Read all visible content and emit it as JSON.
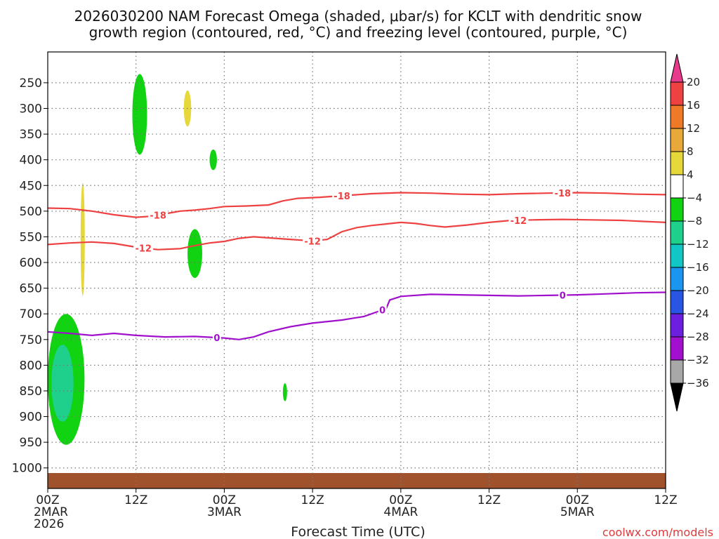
{
  "title_lines": [
    "2026030200 NAM Forecast Omega (shaded, μbar/s) for KCLT with dendritic snow",
    "growth region (contoured, red, °C) and freezing level (contoured, purple, °C)"
  ],
  "credit": "coolwx.com/models",
  "chart_data": {
    "type": "heatmap",
    "title": "2026030200 NAM Forecast Omega (shaded, μbar/s) for KCLT with dendritic snow growth region (contoured, red, °C) and freezing level (contoured, purple, °C)",
    "xlabel": "Forecast Time (UTC)",
    "ylabel": "",
    "xlim": [
      0,
      84
    ],
    "ylim": [
      1040,
      190
    ],
    "y_ticks": [
      250,
      300,
      350,
      400,
      450,
      500,
      550,
      600,
      650,
      700,
      750,
      800,
      850,
      900,
      950,
      1000
    ],
    "x_ticks": [
      {
        "hour": 0,
        "lines": [
          "00Z",
          "2MAR",
          "2026"
        ]
      },
      {
        "hour": 12,
        "lines": [
          "12Z"
        ]
      },
      {
        "hour": 24,
        "lines": [
          "00Z",
          "3MAR"
        ]
      },
      {
        "hour": 36,
        "lines": [
          "12Z"
        ]
      },
      {
        "hour": 48,
        "lines": [
          "00Z",
          "4MAR"
        ]
      },
      {
        "hour": 60,
        "lines": [
          "12Z"
        ]
      },
      {
        "hour": 72,
        "lines": [
          "00Z",
          "5MAR"
        ]
      },
      {
        "hour": 84,
        "lines": [
          "12Z"
        ]
      }
    ],
    "grid": true,
    "colorbar": {
      "levels": [
        "20",
        "16",
        "12",
        "8",
        "4",
        "−4",
        "−8",
        "−12",
        "−16",
        "−20",
        "−24",
        "−28",
        "−32",
        "−36"
      ],
      "colors": [
        "#e83a8c",
        "#ee4141",
        "#ee7a28",
        "#e8a93a",
        "#e6d83a",
        "#ffffff",
        "#11d311",
        "#1ed08c",
        "#13c6c6",
        "#1a96f0",
        "#2955e5",
        "#6d1fe0",
        "#a30fcf",
        "#a8a8a8",
        "#000000"
      ]
    },
    "contours": [
      {
        "label": "-18",
        "color": "#ee4141",
        "points": [
          [
            0,
            494
          ],
          [
            3,
            495
          ],
          [
            6,
            500
          ],
          [
            9,
            507
          ],
          [
            12,
            512
          ],
          [
            14,
            510
          ],
          [
            16,
            505
          ],
          [
            18,
            500
          ],
          [
            20,
            498
          ],
          [
            22,
            495
          ],
          [
            24,
            491
          ],
          [
            27,
            490
          ],
          [
            30,
            488
          ],
          [
            32,
            480
          ],
          [
            34,
            475
          ],
          [
            37,
            473
          ],
          [
            40,
            470
          ],
          [
            44,
            466
          ],
          [
            48,
            464
          ],
          [
            52,
            465
          ],
          [
            56,
            467
          ],
          [
            60,
            468
          ],
          [
            64,
            466
          ],
          [
            68,
            465
          ],
          [
            72,
            464
          ],
          [
            76,
            465
          ],
          [
            80,
            467
          ],
          [
            84,
            468
          ]
        ]
      },
      {
        "label": "-12",
        "color": "#ee4141",
        "points": [
          [
            0,
            565
          ],
          [
            3,
            562
          ],
          [
            6,
            560
          ],
          [
            9,
            563
          ],
          [
            12,
            570
          ],
          [
            15,
            575
          ],
          [
            18,
            573
          ],
          [
            20,
            567
          ],
          [
            22,
            562
          ],
          [
            24,
            559
          ],
          [
            26,
            553
          ],
          [
            28,
            550
          ],
          [
            30,
            552
          ],
          [
            33,
            555
          ],
          [
            36,
            558
          ],
          [
            38,
            555
          ],
          [
            40,
            540
          ],
          [
            42,
            532
          ],
          [
            44,
            528
          ],
          [
            46,
            525
          ],
          [
            48,
            522
          ],
          [
            50,
            524
          ],
          [
            52,
            528
          ],
          [
            54,
            531
          ],
          [
            57,
            527
          ],
          [
            60,
            522
          ],
          [
            63,
            518
          ],
          [
            66,
            517
          ],
          [
            70,
            516
          ],
          [
            74,
            517
          ],
          [
            78,
            518
          ],
          [
            81,
            520
          ],
          [
            84,
            522
          ]
        ]
      },
      {
        "label": "0",
        "color": "#a010cc",
        "points": [
          [
            0,
            735
          ],
          [
            3,
            738
          ],
          [
            6,
            742
          ],
          [
            9,
            738
          ],
          [
            12,
            742
          ],
          [
            16,
            745
          ],
          [
            20,
            744
          ],
          [
            24,
            747
          ],
          [
            26,
            750
          ],
          [
            28,
            745
          ],
          [
            30,
            735
          ],
          [
            33,
            725
          ],
          [
            36,
            718
          ],
          [
            40,
            712
          ],
          [
            43,
            705
          ],
          [
            45,
            695
          ],
          [
            46,
            690
          ],
          [
            46.5,
            673
          ],
          [
            48,
            666
          ],
          [
            52,
            662
          ],
          [
            56,
            663
          ],
          [
            60,
            664
          ],
          [
            64,
            665
          ],
          [
            68,
            664
          ],
          [
            72,
            663
          ],
          [
            76,
            661
          ],
          [
            80,
            659
          ],
          [
            84,
            658
          ]
        ]
      }
    ],
    "shaded_regions": [
      {
        "value": "−4 to −8",
        "color": "#11d311",
        "x": [
          0,
          5
        ],
        "y": [
          700,
          955
        ]
      },
      {
        "value": "−8 to −12",
        "color": "#1ed08c",
        "x": [
          0.5,
          3.5
        ],
        "y": [
          760,
          910
        ]
      },
      {
        "value": "−4 to −8",
        "color": "#11d311",
        "x": [
          11.5,
          13.5
        ],
        "y": [
          233,
          390
        ]
      },
      {
        "value": "4 to 8",
        "color": "#e6d83a",
        "x": [
          18.5,
          19.5
        ],
        "y": [
          265,
          335
        ]
      },
      {
        "value": "4 to 8",
        "color": "#e6d83a",
        "x": [
          4.5,
          5
        ],
        "y": [
          445,
          665
        ]
      },
      {
        "value": "−4 to −8",
        "color": "#11d311",
        "x": [
          22,
          23
        ],
        "y": [
          380,
          420
        ]
      },
      {
        "value": "−4 to −8",
        "color": "#11d311",
        "x": [
          19,
          21
        ],
        "y": [
          535,
          630
        ]
      },
      {
        "value": "−4 to −8",
        "color": "#11d311",
        "x": [
          32,
          32.5
        ],
        "y": [
          835,
          870
        ]
      }
    ]
  }
}
